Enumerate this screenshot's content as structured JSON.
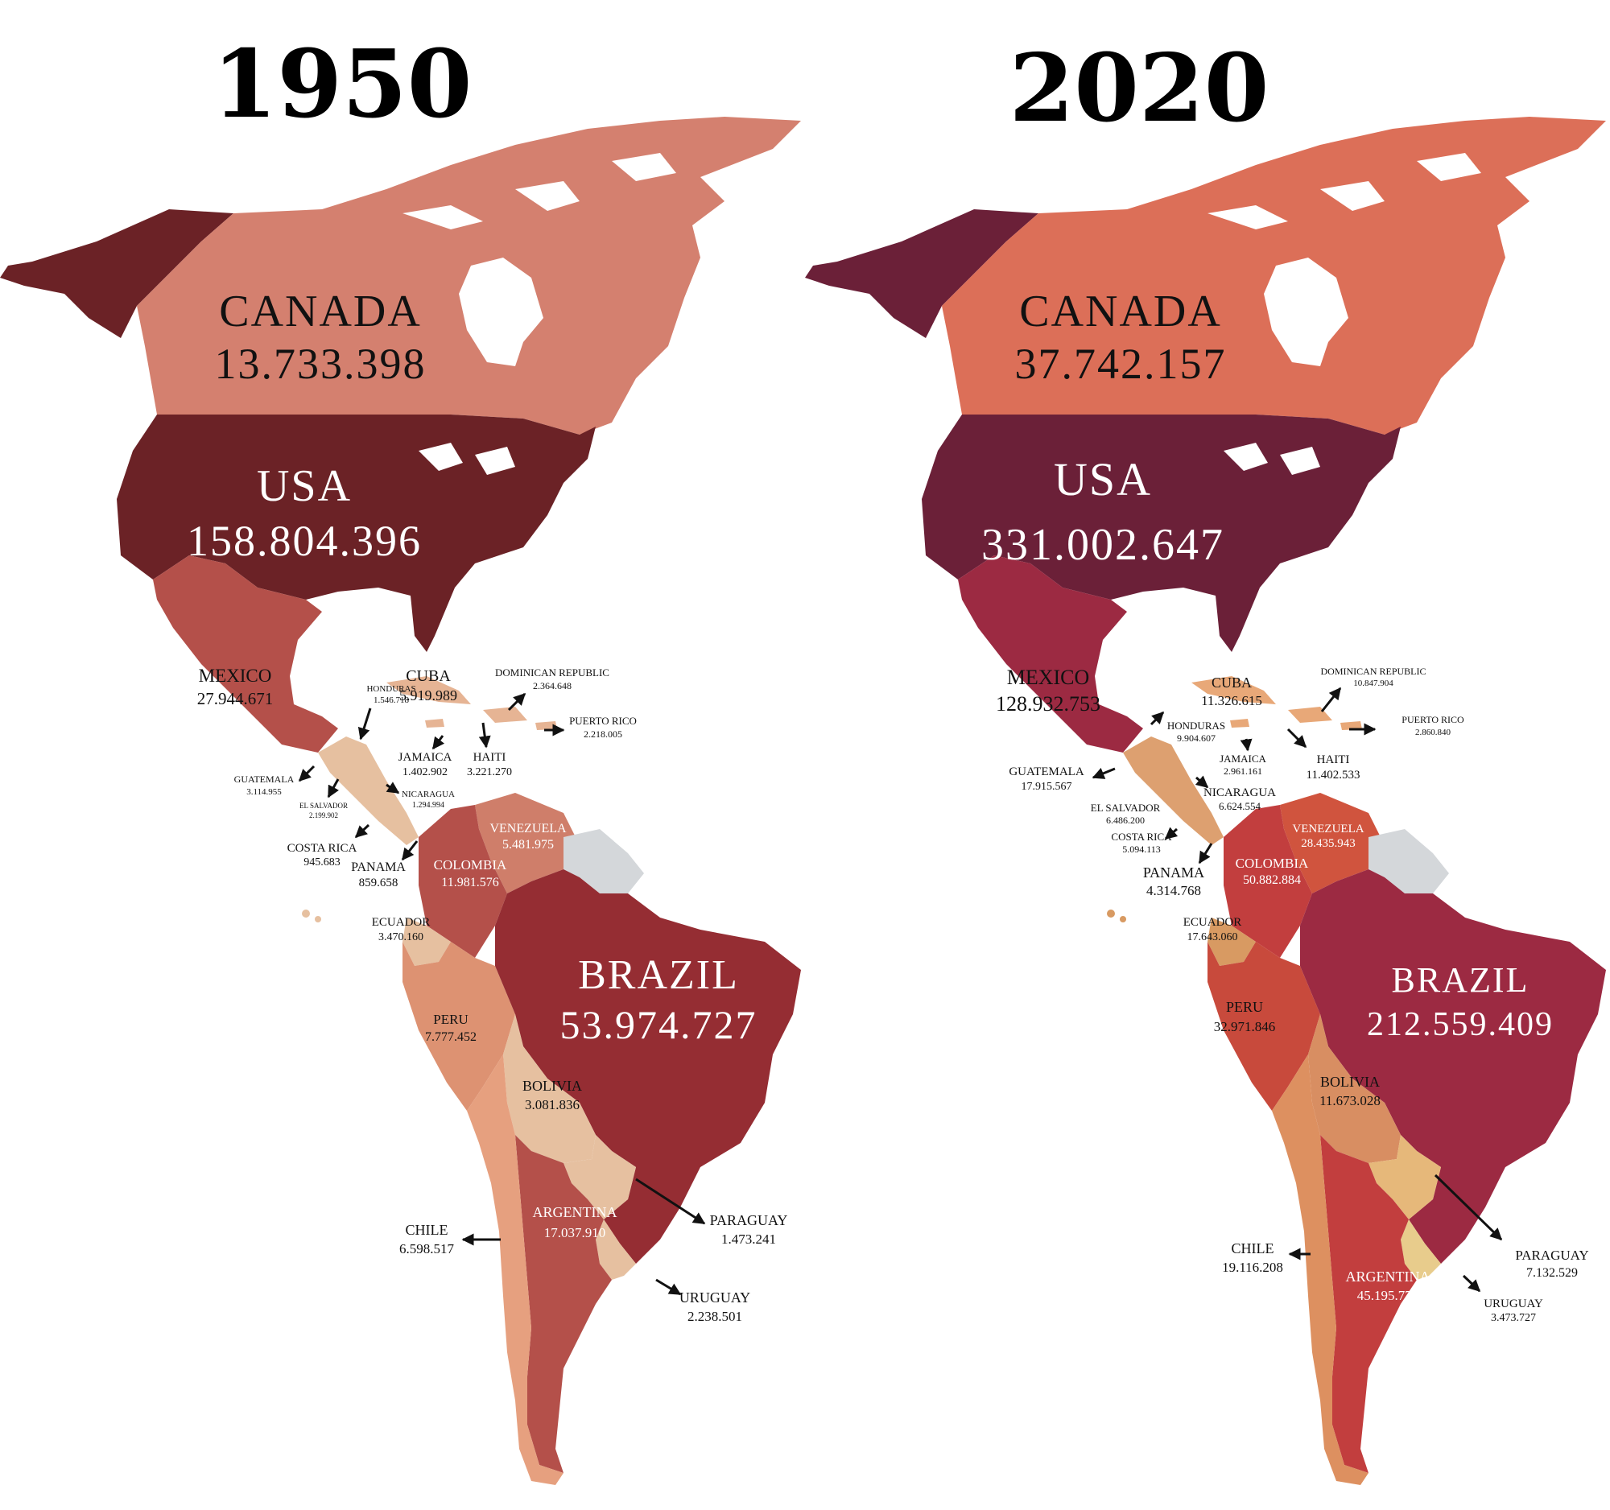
{
  "maps": [
    {
      "year": "1950",
      "countries": {
        "canada": {
          "name": "CANADA",
          "pop": "13.733.398"
        },
        "usa": {
          "name": "USA",
          "pop": "158.804.396"
        },
        "mexico": {
          "name": "MEXICO",
          "pop": "27.944.671"
        },
        "cuba": {
          "name": "CUBA",
          "pop": "5.919.989"
        },
        "dominican": {
          "name": "DOMINICAN REPUBLIC",
          "pop": "2.364.648"
        },
        "puerto": {
          "name": "PUERTO RICO",
          "pop": "2.218.005"
        },
        "honduras": {
          "name": "HONDURAS",
          "pop": "1.546.718"
        },
        "jamaica": {
          "name": "JAMAICA",
          "pop": "1.402.902"
        },
        "haiti": {
          "name": "HAITI",
          "pop": "3.221.270"
        },
        "guatemala": {
          "name": "GUATEMALA",
          "pop": "3.114.955"
        },
        "salvador": {
          "name": "EL SALVADOR",
          "pop": "2.199.902"
        },
        "nicaragua": {
          "name": "NICARAGUA",
          "pop": "1.294.994"
        },
        "costarica": {
          "name": "COSTA RICA",
          "pop": "945.683"
        },
        "panama": {
          "name": "PANAMA",
          "pop": "859.658"
        },
        "venezuela": {
          "name": "VENEZUELA",
          "pop": "5.481.975"
        },
        "colombia": {
          "name": "COLOMBIA",
          "pop": "11.981.576"
        },
        "ecuador": {
          "name": "ECUADOR",
          "pop": "3.470.160"
        },
        "brazil": {
          "name": "BRAZIL",
          "pop": "53.974.727"
        },
        "peru": {
          "name": "PERU",
          "pop": "7.777.452"
        },
        "bolivia": {
          "name": "BOLIVIA",
          "pop": "3.081.836"
        },
        "argentina": {
          "name": "ARGENTINA",
          "pop": "17.037.910"
        },
        "chile": {
          "name": "CHILE",
          "pop": "6.598.517"
        },
        "paraguay": {
          "name": "PARAGUAY",
          "pop": "1.473.241"
        },
        "uruguay": {
          "name": "URUGUAY",
          "pop": "2.238.501"
        }
      },
      "colors": {
        "alaska": "#6b2226",
        "canada": "#d4806f",
        "usa": "#6b2226",
        "mexico": "#b4504a",
        "central": "#e6c0a0",
        "carib": "#e6b494",
        "venezuela": "#cf7e6a",
        "colombia": "#b4504a",
        "ecuador": "#e6c0a0",
        "peru": "#dd9272",
        "brazil": "#952d33",
        "bolivia": "#e6c0a0",
        "argentina": "#b4504a",
        "chile": "#e6a07f",
        "paraguay": "#e6c0a0",
        "uruguay": "#e6c0a0",
        "guiana": "#d4d7da"
      }
    },
    {
      "year": "2020",
      "countries": {
        "canada": {
          "name": "CANADA",
          "pop": "37.742.157"
        },
        "usa": {
          "name": "USA",
          "pop": "331.002.647"
        },
        "mexico": {
          "name": "MEXICO",
          "pop": "128.932.753"
        },
        "cuba": {
          "name": "CUBA",
          "pop": "11.326.615"
        },
        "dominican": {
          "name": "DOMINICAN REPUBLIC",
          "pop": "10.847.904"
        },
        "puerto": {
          "name": "PUERTO RICO",
          "pop": "2.860.840"
        },
        "honduras": {
          "name": "HONDURAS",
          "pop": "9.904.607"
        },
        "jamaica": {
          "name": "JAMAICA",
          "pop": "2.961.161"
        },
        "haiti": {
          "name": "HAITI",
          "pop": "11.402.533"
        },
        "guatemala": {
          "name": "GUATEMALA",
          "pop": "17.915.567"
        },
        "salvador": {
          "name": "EL SALVADOR",
          "pop": "6.486.200"
        },
        "nicaragua": {
          "name": "NICARAGUA",
          "pop": "6.624.554"
        },
        "costarica": {
          "name": "COSTA RICA",
          "pop": "5.094.113"
        },
        "panama": {
          "name": "PANAMA",
          "pop": "4.314.768"
        },
        "venezuela": {
          "name": "VENEZUELA",
          "pop": "28.435.943"
        },
        "colombia": {
          "name": "COLOMBIA",
          "pop": "50.882.884"
        },
        "ecuador": {
          "name": "ECUADOR",
          "pop": "17.643.060"
        },
        "brazil": {
          "name": "BRAZIL",
          "pop": "212.559.409"
        },
        "peru": {
          "name": "PERU",
          "pop": "32.971.846"
        },
        "bolivia": {
          "name": "BOLIVIA",
          "pop": "11.673.028"
        },
        "argentina": {
          "name": "ARGENTINA",
          "pop": "45.195.777"
        },
        "chile": {
          "name": "CHILE",
          "pop": "19.116.208"
        },
        "paraguay": {
          "name": "PARAGUAY",
          "pop": "7.132.529"
        },
        "uruguay": {
          "name": "URUGUAY",
          "pop": "3.473.727"
        }
      },
      "colors": {
        "alaska": "#6b2038",
        "canada": "#dc6f58",
        "usa": "#6b2038",
        "mexico": "#9c2a42",
        "central": "#dda070",
        "carib": "#e8a878",
        "venezuela": "#d0543e",
        "colombia": "#c23e3e",
        "ecuador": "#d89a62",
        "peru": "#c84a3c",
        "brazil": "#9c2a42",
        "bolivia": "#d88e62",
        "argentina": "#c23e3e",
        "chile": "#dd9060",
        "paraguay": "#e6b87a",
        "uruguay": "#e8cc8c",
        "guiana": "#d4d7da"
      }
    }
  ]
}
